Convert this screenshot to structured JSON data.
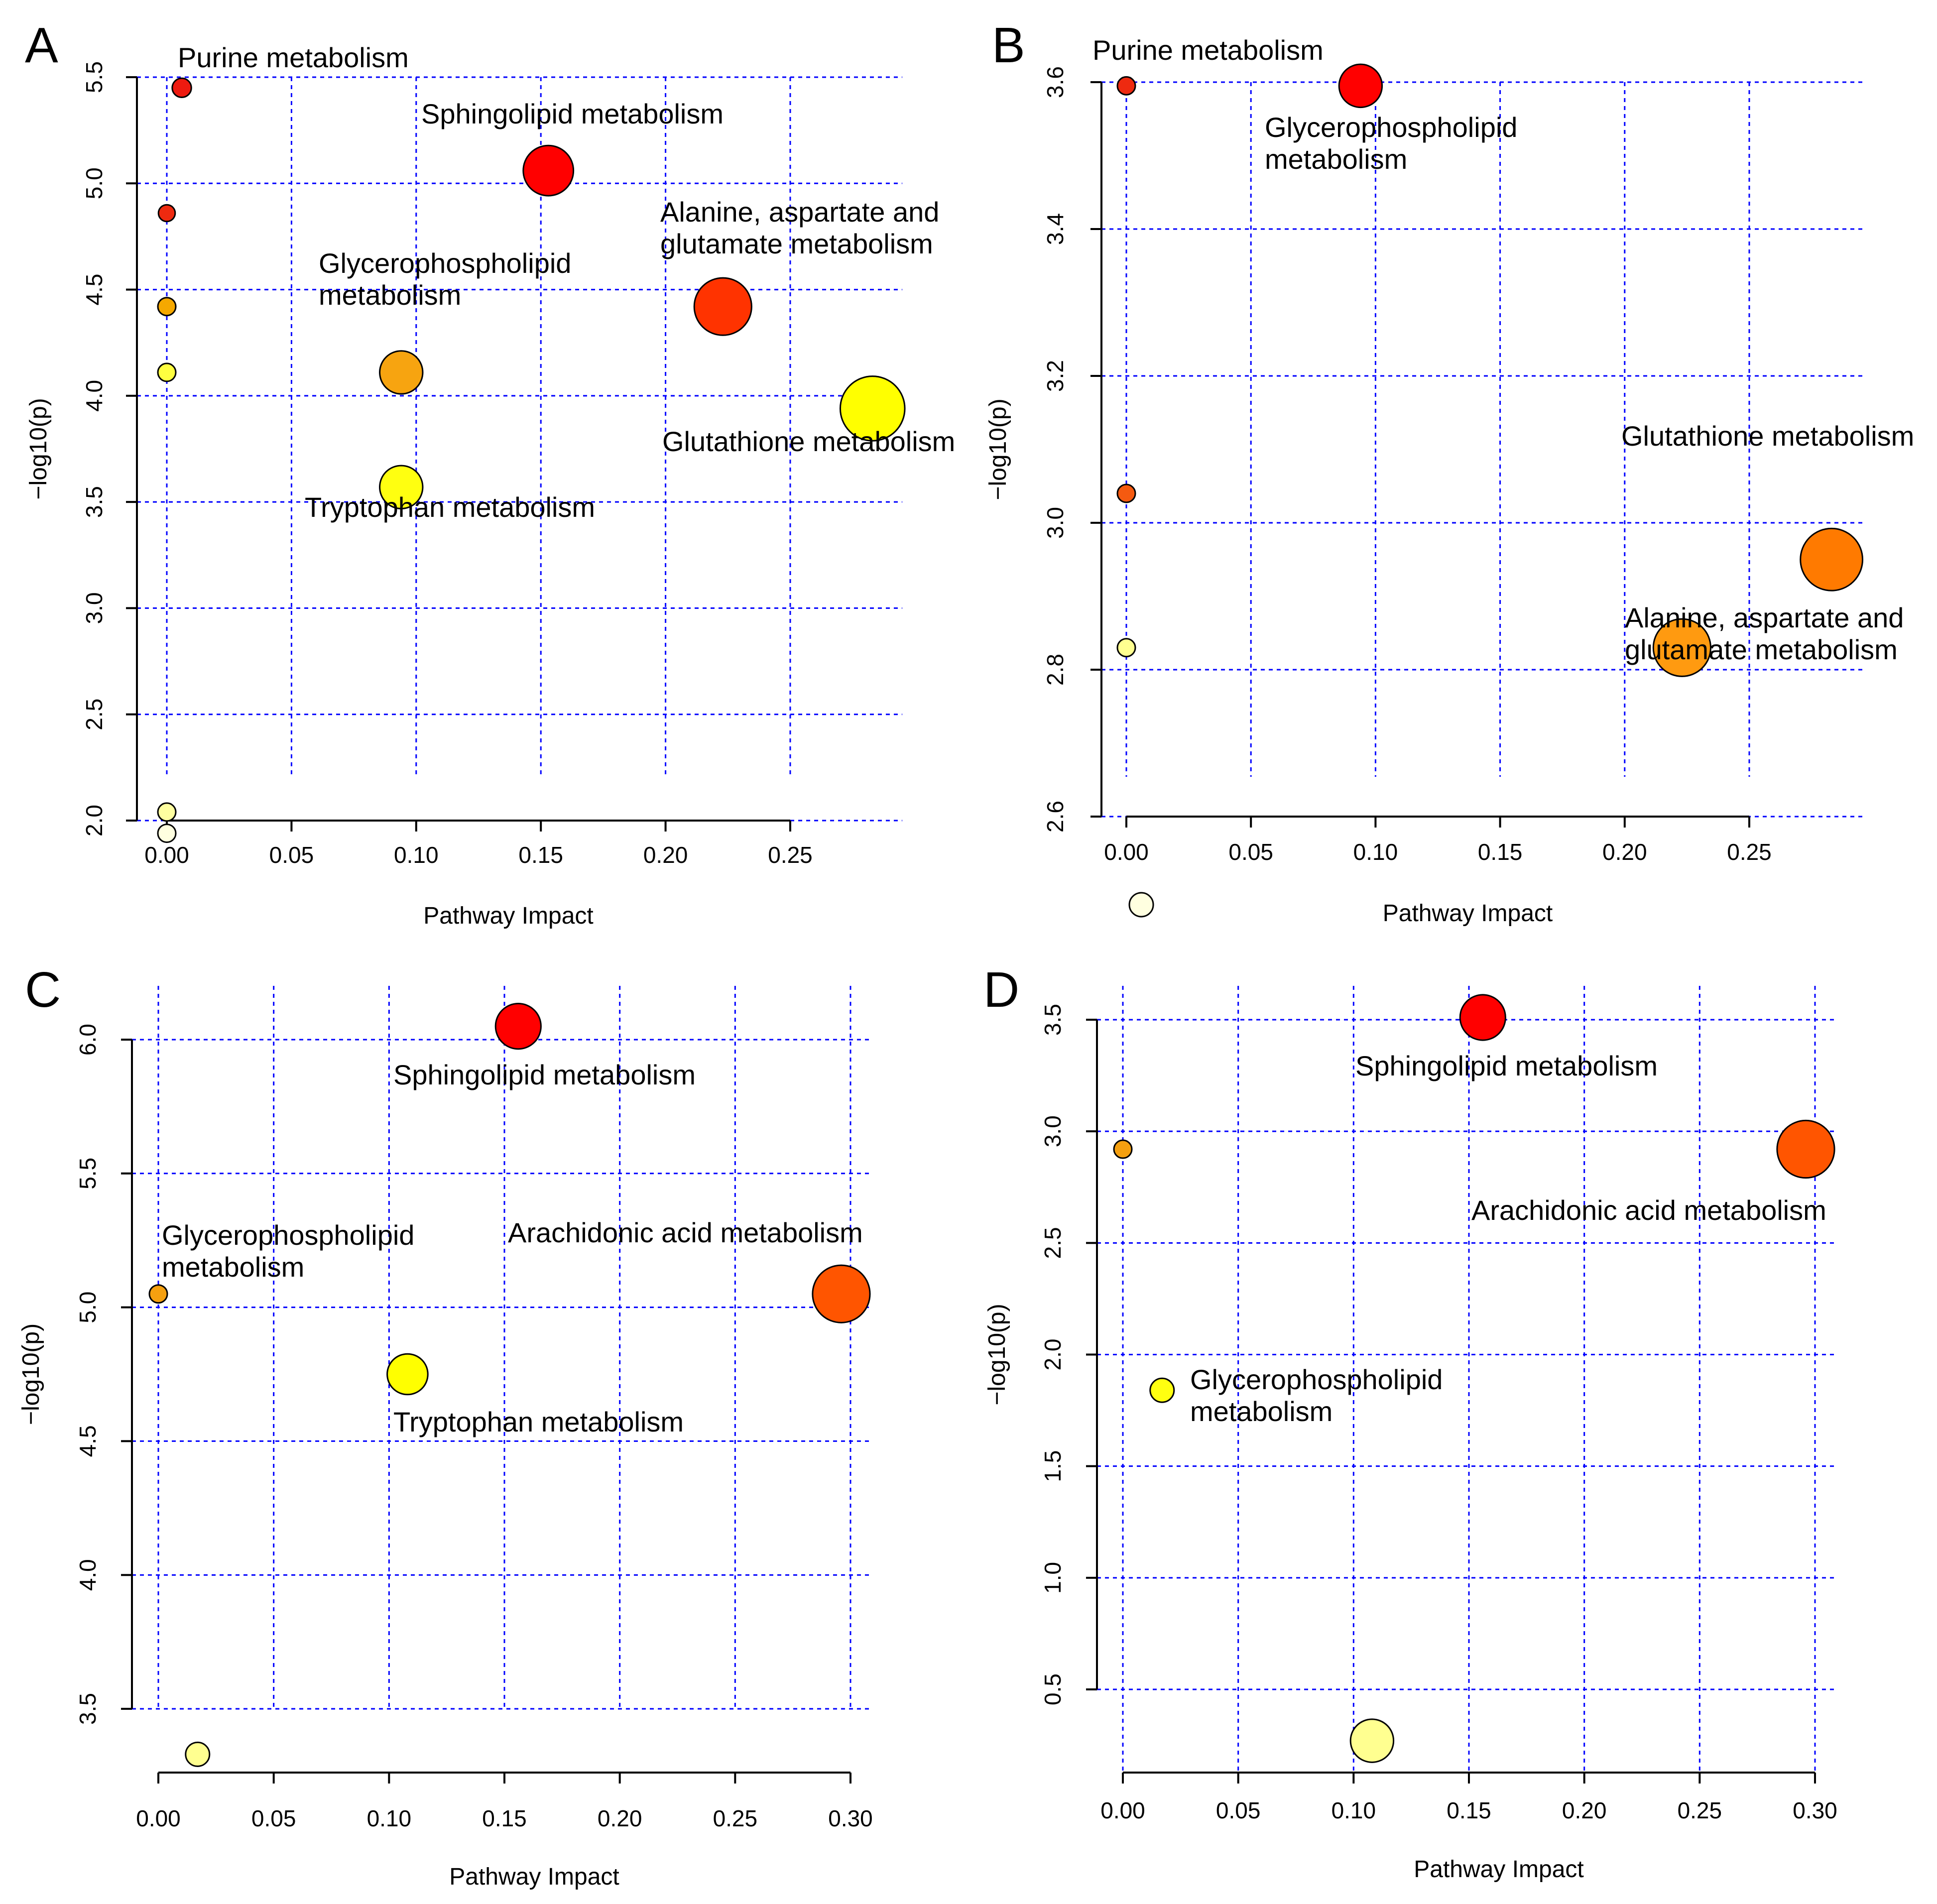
{
  "chart_data": [
    {
      "panel": "A",
      "type": "scatter",
      "title": "",
      "xlabel": "Pathway Impact",
      "ylabel": "−log10(p)",
      "xticks": [
        "0.00",
        "0.05",
        "0.10",
        "0.15",
        "0.20",
        "0.25"
      ],
      "yticks": [
        "2.0",
        "2.5",
        "3.0",
        "3.5",
        "4.0",
        "4.5",
        "5.0",
        "5.5"
      ],
      "grid": true,
      "points": [
        {
          "x": 0.006,
          "y": 5.45,
          "size": 0.8,
          "color": "#ee1a10",
          "label": [
            "Purine metabolism"
          ]
        },
        {
          "x": 0.153,
          "y": 5.06,
          "size": 2.1,
          "color": "#ff0000",
          "label": [
            "Sphingolipid metabolism"
          ]
        },
        {
          "x": 0.0,
          "y": 4.86,
          "size": 0.7,
          "color": "#ee2a10",
          "label": []
        },
        {
          "x": 0.223,
          "y": 4.42,
          "size": 2.4,
          "color": "#ff3300",
          "label": [
            "Alanine, aspartate and",
            "glutamate metabolism"
          ]
        },
        {
          "x": 0.0,
          "y": 4.42,
          "size": 0.75,
          "color": "#f5a800",
          "label": []
        },
        {
          "x": 0.0,
          "y": 4.11,
          "size": 0.75,
          "color": "#ffff40",
          "label": []
        },
        {
          "x": 0.094,
          "y": 4.11,
          "size": 1.8,
          "color": "#f7a410",
          "label": [
            "Glycerophospholipid",
            "metabolism"
          ]
        },
        {
          "x": 0.283,
          "y": 3.94,
          "size": 2.7,
          "color": "#ffff00",
          "label": [
            "Glutathione metabolism"
          ]
        },
        {
          "x": 0.094,
          "y": 3.57,
          "size": 1.8,
          "color": "#ffff10",
          "label": [
            "Tryptophan metabolism"
          ]
        },
        {
          "x": 0.0,
          "y": 2.04,
          "size": 0.75,
          "color": "#ffffa0",
          "label": []
        },
        {
          "x": 0.0,
          "y": 1.94,
          "size": 0.75,
          "color": "#ffffe0",
          "label": []
        }
      ]
    },
    {
      "panel": "B",
      "type": "scatter",
      "title": "",
      "xlabel": "Pathway Impact",
      "ylabel": "−log10(p)",
      "xticks": [
        "0.00",
        "0.05",
        "0.10",
        "0.15",
        "0.20",
        "0.25"
      ],
      "yticks": [
        "2.6",
        "2.8",
        "3.0",
        "3.2",
        "3.4",
        "3.6"
      ],
      "grid": true,
      "points": [
        {
          "x": 0.0,
          "y": 3.595,
          "size": 0.75,
          "color": "#ee2a10",
          "label": [
            "Purine metabolism"
          ]
        },
        {
          "x": 0.094,
          "y": 3.595,
          "size": 1.8,
          "color": "#ff0000",
          "label": [
            "Glycerophospholipid",
            "metabolism"
          ]
        },
        {
          "x": 0.0,
          "y": 3.04,
          "size": 0.75,
          "color": "#f55a10",
          "label": []
        },
        {
          "x": 0.283,
          "y": 2.95,
          "size": 2.6,
          "color": "#ff7a00",
          "label": [
            "Glutathione metabolism"
          ]
        },
        {
          "x": 0.223,
          "y": 2.83,
          "size": 2.4,
          "color": "#ff9a10",
          "label": [
            "Alanine, aspartate and",
            "glutamate metabolism"
          ]
        },
        {
          "x": 0.0,
          "y": 2.83,
          "size": 0.75,
          "color": "#ffff90",
          "label": []
        },
        {
          "x": 0.006,
          "y": 2.48,
          "size": 1.0,
          "color": "#ffffe0",
          "label": []
        }
      ]
    },
    {
      "panel": "C",
      "type": "scatter",
      "title": "",
      "xlabel": "Pathway Impact",
      "ylabel": "−log10(p)",
      "xticks": [
        "0.00",
        "0.05",
        "0.10",
        "0.15",
        "0.20",
        "0.25",
        "0.30"
      ],
      "yticks": [
        "3.5",
        "4.0",
        "4.5",
        "5.0",
        "5.5",
        "6.0"
      ],
      "grid": true,
      "points": [
        {
          "x": 0.156,
          "y": 6.05,
          "size": 1.9,
          "color": "#ff0000",
          "label": [
            "Sphingolipid metabolism"
          ]
        },
        {
          "x": 0.296,
          "y": 5.05,
          "size": 2.4,
          "color": "#ff5500",
          "label": [
            "Arachidonic acid metabolism"
          ]
        },
        {
          "x": 0.0,
          "y": 5.05,
          "size": 0.75,
          "color": "#f5a010",
          "label": [
            "Glycerophospholipid",
            "metabolism"
          ]
        },
        {
          "x": 0.108,
          "y": 4.75,
          "size": 1.7,
          "color": "#ffff00",
          "label": [
            "Tryptophan metabolism"
          ]
        },
        {
          "x": 0.017,
          "y": 3.33,
          "size": 1.0,
          "color": "#ffff90",
          "label": []
        }
      ]
    },
    {
      "panel": "D",
      "type": "scatter",
      "title": "",
      "xlabel": "Pathway Impact",
      "ylabel": "−log10(p)",
      "xticks": [
        "0.00",
        "0.05",
        "0.10",
        "0.15",
        "0.20",
        "0.25",
        "0.30"
      ],
      "yticks": [
        "0.5",
        "1.0",
        "1.5",
        "2.0",
        "2.5",
        "3.0",
        "3.5"
      ],
      "grid": true,
      "points": [
        {
          "x": 0.156,
          "y": 3.51,
          "size": 1.9,
          "color": "#ff0000",
          "label": [
            "Sphingolipid metabolism"
          ]
        },
        {
          "x": 0.0,
          "y": 2.92,
          "size": 0.75,
          "color": "#f5a010",
          "label": []
        },
        {
          "x": 0.296,
          "y": 2.92,
          "size": 2.4,
          "color": "#ff5500",
          "label": [
            "Arachidonic acid metabolism"
          ]
        },
        {
          "x": 0.017,
          "y": 1.84,
          "size": 1.0,
          "color": "#ffff10",
          "label": [
            "Glycerophospholipid",
            "metabolism"
          ]
        },
        {
          "x": 0.108,
          "y": 0.27,
          "size": 1.8,
          "color": "#ffff90",
          "label": []
        }
      ]
    }
  ]
}
